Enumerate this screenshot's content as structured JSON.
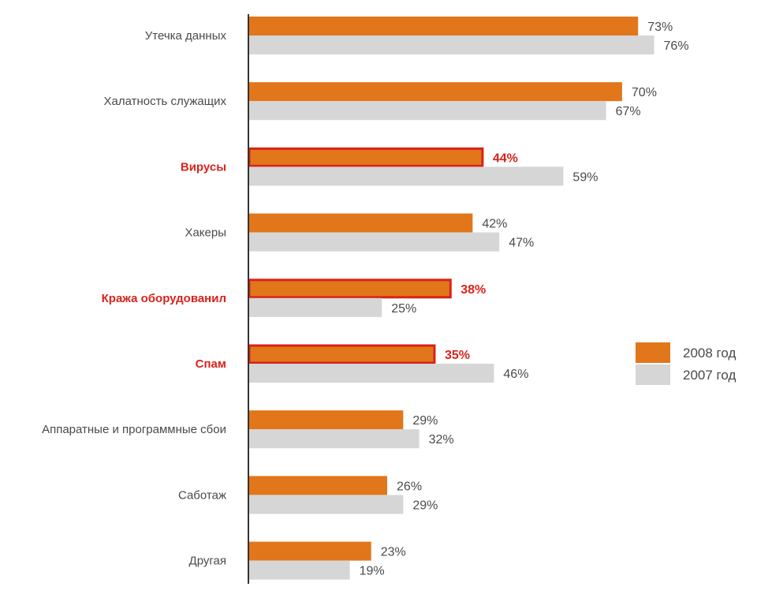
{
  "chart_data": {
    "type": "bar",
    "orientation": "horizontal",
    "categories": [
      "Утечка данных",
      "Халатность служащих",
      "Вирусы",
      "Хакеры",
      "Кража оборудованил",
      "Спам",
      "Аппаратные и программные сбои",
      "Саботаж",
      "Другая"
    ],
    "highlighted_categories": [
      "Вирусы",
      "Кража оборудованил",
      "Спам"
    ],
    "series": [
      {
        "name": "2008 год",
        "color": "#e2761a",
        "values": [
          73,
          70,
          44,
          42,
          38,
          35,
          29,
          26,
          23
        ]
      },
      {
        "name": "2007 год",
        "color": "#d6d6d6",
        "values": [
          76,
          67,
          59,
          47,
          25,
          46,
          32,
          29,
          19
        ]
      }
    ],
    "value_suffix": "%",
    "xlim": [
      0,
      100
    ],
    "grid": false,
    "legend_position": "right",
    "highlight_color": "#d8231b",
    "text_color": "#4a4a4a"
  }
}
